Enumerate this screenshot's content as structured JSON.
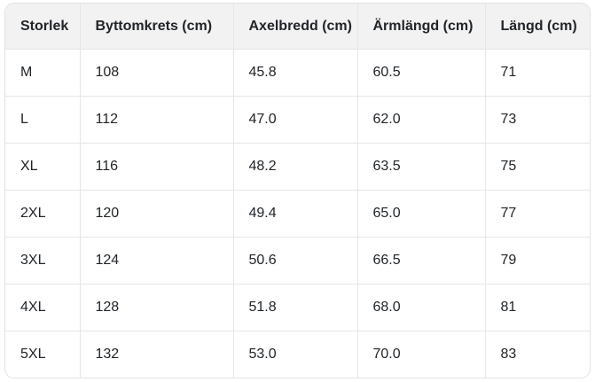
{
  "table": {
    "columns": [
      "Storlek",
      "Byttomkrets (cm)",
      "Axelbredd (cm)",
      "Ärmlängd (cm)",
      "Längd (cm)"
    ],
    "rows": [
      [
        "M",
        "108",
        "45.8",
        "60.5",
        "71"
      ],
      [
        "L",
        "112",
        "47.0",
        "62.0",
        "73"
      ],
      [
        "XL",
        "116",
        "48.2",
        "63.5",
        "75"
      ],
      [
        "2XL",
        "120",
        "49.4",
        "65.0",
        "77"
      ],
      [
        "3XL",
        "124",
        "50.6",
        "66.5",
        "79"
      ],
      [
        "4XL",
        "128",
        "51.8",
        "68.0",
        "81"
      ],
      [
        "5XL",
        "132",
        "53.0",
        "70.0",
        "83"
      ]
    ]
  },
  "chart_data": {
    "type": "table",
    "title": "",
    "columns": [
      "Storlek",
      "Byttomkrets (cm)",
      "Axelbredd (cm)",
      "Ärmlängd (cm)",
      "Längd (cm)"
    ],
    "rows": [
      [
        "M",
        "108",
        "45.8",
        "60.5",
        "71"
      ],
      [
        "L",
        "112",
        "47.0",
        "62.0",
        "73"
      ],
      [
        "XL",
        "116",
        "48.2",
        "63.5",
        "75"
      ],
      [
        "2XL",
        "120",
        "49.4",
        "65.0",
        "77"
      ],
      [
        "3XL",
        "124",
        "50.6",
        "66.5",
        "79"
      ],
      [
        "4XL",
        "128",
        "51.8",
        "68.0",
        "81"
      ],
      [
        "5XL",
        "132",
        "53.0",
        "70.0",
        "83"
      ]
    ]
  },
  "colors": {
    "header_bg": "#f2f2f2",
    "row_bg": "#ffffff",
    "border": "#e6e6e6",
    "outer_border": "#e2e2e2",
    "text": "#212529"
  }
}
